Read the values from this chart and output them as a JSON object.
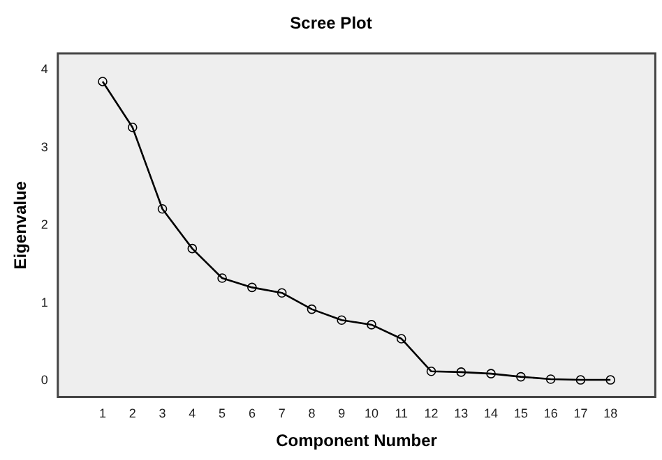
{
  "chart_data": {
    "type": "line",
    "title": "Scree Plot",
    "xlabel": "Component Number",
    "ylabel": "Eigenvalue",
    "x": [
      1,
      2,
      3,
      4,
      5,
      6,
      7,
      8,
      9,
      10,
      11,
      12,
      13,
      14,
      15,
      16,
      17,
      18
    ],
    "values": [
      3.85,
      3.26,
      2.21,
      1.7,
      1.32,
      1.2,
      1.13,
      0.92,
      0.78,
      0.72,
      0.54,
      0.12,
      0.11,
      0.09,
      0.05,
      0.02,
      0.01,
      0.01
    ],
    "color": "#000000",
    "marker": "circle",
    "line_style": "solid",
    "grid": false,
    "legend": false,
    "xlim": [
      -0.5,
      19.5
    ],
    "xticks": [
      1,
      2,
      3,
      4,
      5,
      6,
      7,
      8,
      9,
      10,
      11,
      12,
      13,
      14,
      15,
      16,
      17,
      18
    ],
    "ylim": [
      -0.21,
      4.21
    ],
    "yticks": [
      0,
      1,
      2,
      3,
      4
    ]
  }
}
